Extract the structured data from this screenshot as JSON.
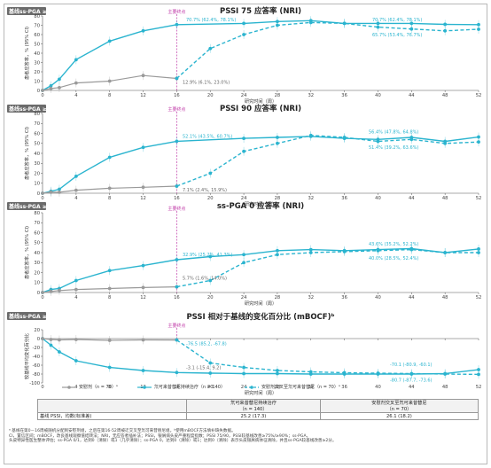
{
  "badge_label": "基线ss-PGA ≥1",
  "primary_endpoint_label": "主要终点",
  "xlabel": "研究时间（周）",
  "legend": {
    "placebo": "安慰剂（n = 70）ᵃ",
    "spes_start": "氘可来昔替尼持续治疗（n = 140）",
    "crossover": "安慰剂交叉至氘可来昔替尼（n = 70）ᵃ"
  },
  "colors": {
    "treatment": "#2ab4cf",
    "placebo": "#9a9a9a",
    "endpoint": "#c03aa8",
    "badge": "#6b6b6b"
  },
  "table": {
    "header_label": "",
    "col_a": "氘可来昔替尼持续治疗\n（n = 140）",
    "col_b": "安慰剂交叉至氘可来昔替尼\n（n = 70）",
    "row_label": "基线 PSSI，均数(标准差)",
    "val_a": "25.2 (17.3)",
    "val_b": "26.1 (18.2)"
  },
  "footnote": "ᵃ 基线在第0－16周被随机分配到安慰剂组，之后在第16-52周被迁交叉至氘可来昔替尼组。ᵇ使用mBOCF方法填补缺失数据。\nCI，置信区间；mBOCF，改良基线观察值结转法；NRI，无应答者插补法；PSSI，银屑病头皮严重程度指数；PSSI 75/90，PSSI较基线改善≥75%/≥90%；ss-PGA，\n头皮特异性医生整体评估；ss-PGA 0/1，达到0（清除）或1（几乎清除）；ss-PGA 0，达到0（清除）或1；达到0（清除）表示头皮银屑病体征清除，并且ss-PGA较基线改善≥2分。",
  "chart_data": [
    {
      "type": "line",
      "title": "PSSI 75 应答率 (NRI)",
      "ylabel": "患者应答率，% (95% CI)",
      "xlabel": "研究时间（周）",
      "ylim": [
        0,
        80
      ],
      "yticks": [
        0,
        10,
        20,
        30,
        40,
        50,
        60,
        70,
        80
      ],
      "xticks": [
        0,
        4,
        8,
        12,
        16,
        20,
        24,
        28,
        32,
        36,
        40,
        44,
        48,
        52
      ],
      "series": [
        {
          "name": "氘可来昔替尼持续治疗",
          "x": [
            0,
            1,
            2,
            4,
            8,
            12,
            16,
            24,
            28,
            32,
            36,
            40,
            44,
            48,
            52
          ],
          "y": [
            0,
            5,
            12,
            33,
            53,
            64,
            70.7,
            72,
            74,
            75,
            72,
            72,
            72,
            71,
            70.7
          ]
        },
        {
          "name": "安慰剂",
          "x": [
            0,
            1,
            2,
            4,
            8,
            12,
            16
          ],
          "y": [
            0,
            2,
            3,
            8,
            10,
            16,
            12.9
          ]
        },
        {
          "name": "安慰剂交叉至氘可来昔替尼",
          "x": [
            16,
            20,
            24,
            28,
            32,
            36,
            40,
            44,
            48,
            52
          ],
          "y": [
            12.9,
            45,
            60,
            70,
            73,
            72,
            68,
            66,
            64,
            65.7
          ]
        }
      ],
      "annotations": [
        "70.7% (62.4%, 78.1%)",
        "12.9% (6.1%, 23.0%)",
        "70.7% (62.4%, 78.1%)",
        "65.7% (53.4%, 76.7%)"
      ]
    },
    {
      "type": "line",
      "title": "PSSI 90 应答率 (NRI)",
      "ylabel": "患者应答率，% (95% CI)",
      "xlabel": "研究时间（周）",
      "ylim": [
        0,
        80
      ],
      "yticks": [
        0,
        10,
        20,
        30,
        40,
        50,
        60,
        70,
        80
      ],
      "xticks": [
        0,
        4,
        8,
        12,
        16,
        20,
        24,
        28,
        32,
        36,
        40,
        44,
        48,
        52
      ],
      "series": [
        {
          "name": "氘可来昔替尼持续治疗",
          "x": [
            0,
            1,
            2,
            4,
            8,
            12,
            16,
            24,
            28,
            32,
            36,
            40,
            44,
            48,
            52
          ],
          "y": [
            0,
            2,
            4,
            17,
            36,
            46,
            52.1,
            55,
            56,
            57,
            55,
            54,
            56,
            52,
            56.4
          ]
        },
        {
          "name": "安慰剂",
          "x": [
            0,
            1,
            2,
            4,
            8,
            12,
            16
          ],
          "y": [
            0,
            1,
            1,
            3,
            5,
            6,
            7.1
          ]
        },
        {
          "name": "安慰剂交叉至氘可来昔替尼",
          "x": [
            16,
            20,
            24,
            28,
            32,
            36,
            40,
            44,
            48,
            52
          ],
          "y": [
            7.1,
            20,
            42,
            50,
            58,
            56,
            52,
            54,
            50,
            51.4
          ]
        }
      ],
      "annotations": [
        "52.1% (43.5%, 60.7%)",
        "7.1% (2.4%, 15.9%)",
        "56.4% (47.8%, 64.8%)",
        "51.4% (39.2%, 63.6%)"
      ]
    },
    {
      "type": "line",
      "title": "ss-PGA 0 应答率 (NRI)",
      "ylabel": "患者应答率，% (95% CI)",
      "xlabel": "研究时间（周）",
      "ylim": [
        0,
        80
      ],
      "yticks": [
        0,
        10,
        20,
        30,
        40,
        50,
        60,
        70,
        80
      ],
      "xticks": [
        0,
        4,
        8,
        12,
        16,
        20,
        24,
        28,
        32,
        36,
        40,
        44,
        48,
        52
      ],
      "series": [
        {
          "name": "氘可来昔替尼持续治疗",
          "x": [
            0,
            1,
            2,
            4,
            8,
            12,
            16,
            20,
            24,
            28,
            32,
            36,
            40,
            44,
            48,
            52
          ],
          "y": [
            0,
            3,
            4,
            12,
            22,
            27,
            32.9,
            36,
            38,
            42,
            43,
            42,
            43,
            44,
            40,
            43.6
          ]
        },
        {
          "name": "安慰剂",
          "x": [
            0,
            1,
            2,
            4,
            8,
            12,
            16
          ],
          "y": [
            0,
            1,
            2,
            3,
            4,
            5,
            5.7
          ]
        },
        {
          "name": "安慰剂交叉至氘可来昔替尼",
          "x": [
            16,
            20,
            24,
            28,
            32,
            36,
            40,
            44,
            48,
            52
          ],
          "y": [
            5.7,
            12,
            30,
            38,
            40,
            41,
            42,
            43,
            40,
            40.0
          ]
        }
      ],
      "annotations": [
        "32.9% (25.2%, 41.3%)",
        "5.7% (1.6%, 14.0%)",
        "43.6% (35.2%, 52.2%)",
        "40.0% (28.5%, 52.4%)"
      ]
    },
    {
      "type": "line",
      "title": "PSSI 相对于基线的变化百分比 (mBOCF)ᵇ",
      "ylabel": "较基线平均变化百分比",
      "xlabel": "研究时间（周）",
      "ylim": [
        -100,
        20
      ],
      "yticks": [
        20,
        0,
        -20,
        -40,
        -60,
        -80,
        -100
      ],
      "xticks": [
        0,
        4,
        8,
        12,
        16,
        20,
        24,
        28,
        32,
        36,
        40,
        44,
        48,
        52
      ],
      "series": [
        {
          "name": "氘可来昔替尼持续治疗",
          "x": [
            0,
            1,
            2,
            4,
            8,
            12,
            16,
            20,
            24,
            28,
            32,
            36,
            40,
            44,
            48,
            52
          ],
          "y": [
            0,
            -15,
            -30,
            -50,
            -65,
            -72,
            -76.5,
            -78,
            -79,
            -79,
            -80,
            -80,
            -80,
            -80,
            -79,
            -70.1
          ]
        },
        {
          "name": "安慰剂",
          "x": [
            0,
            1,
            2,
            4,
            8,
            12,
            16
          ],
          "y": [
            0,
            -2,
            -3,
            -2,
            -4,
            -3,
            -3.1
          ]
        },
        {
          "name": "安慰剂交叉至氘可来昔替尼",
          "x": [
            16,
            20,
            24,
            28,
            32,
            36,
            40,
            44,
            48,
            52
          ],
          "y": [
            -3.1,
            -55,
            -65,
            -72,
            -75,
            -77,
            -78,
            -79,
            -80,
            -80.7
          ]
        }
      ],
      "annotations": [
        "-3.1 (-15.4, 9.2)",
        "-76.5 (85.2, -67.8)",
        "-70.1 (-80.9, -60.1)",
        "-80.7 (-87.7, -73.6)"
      ]
    }
  ]
}
